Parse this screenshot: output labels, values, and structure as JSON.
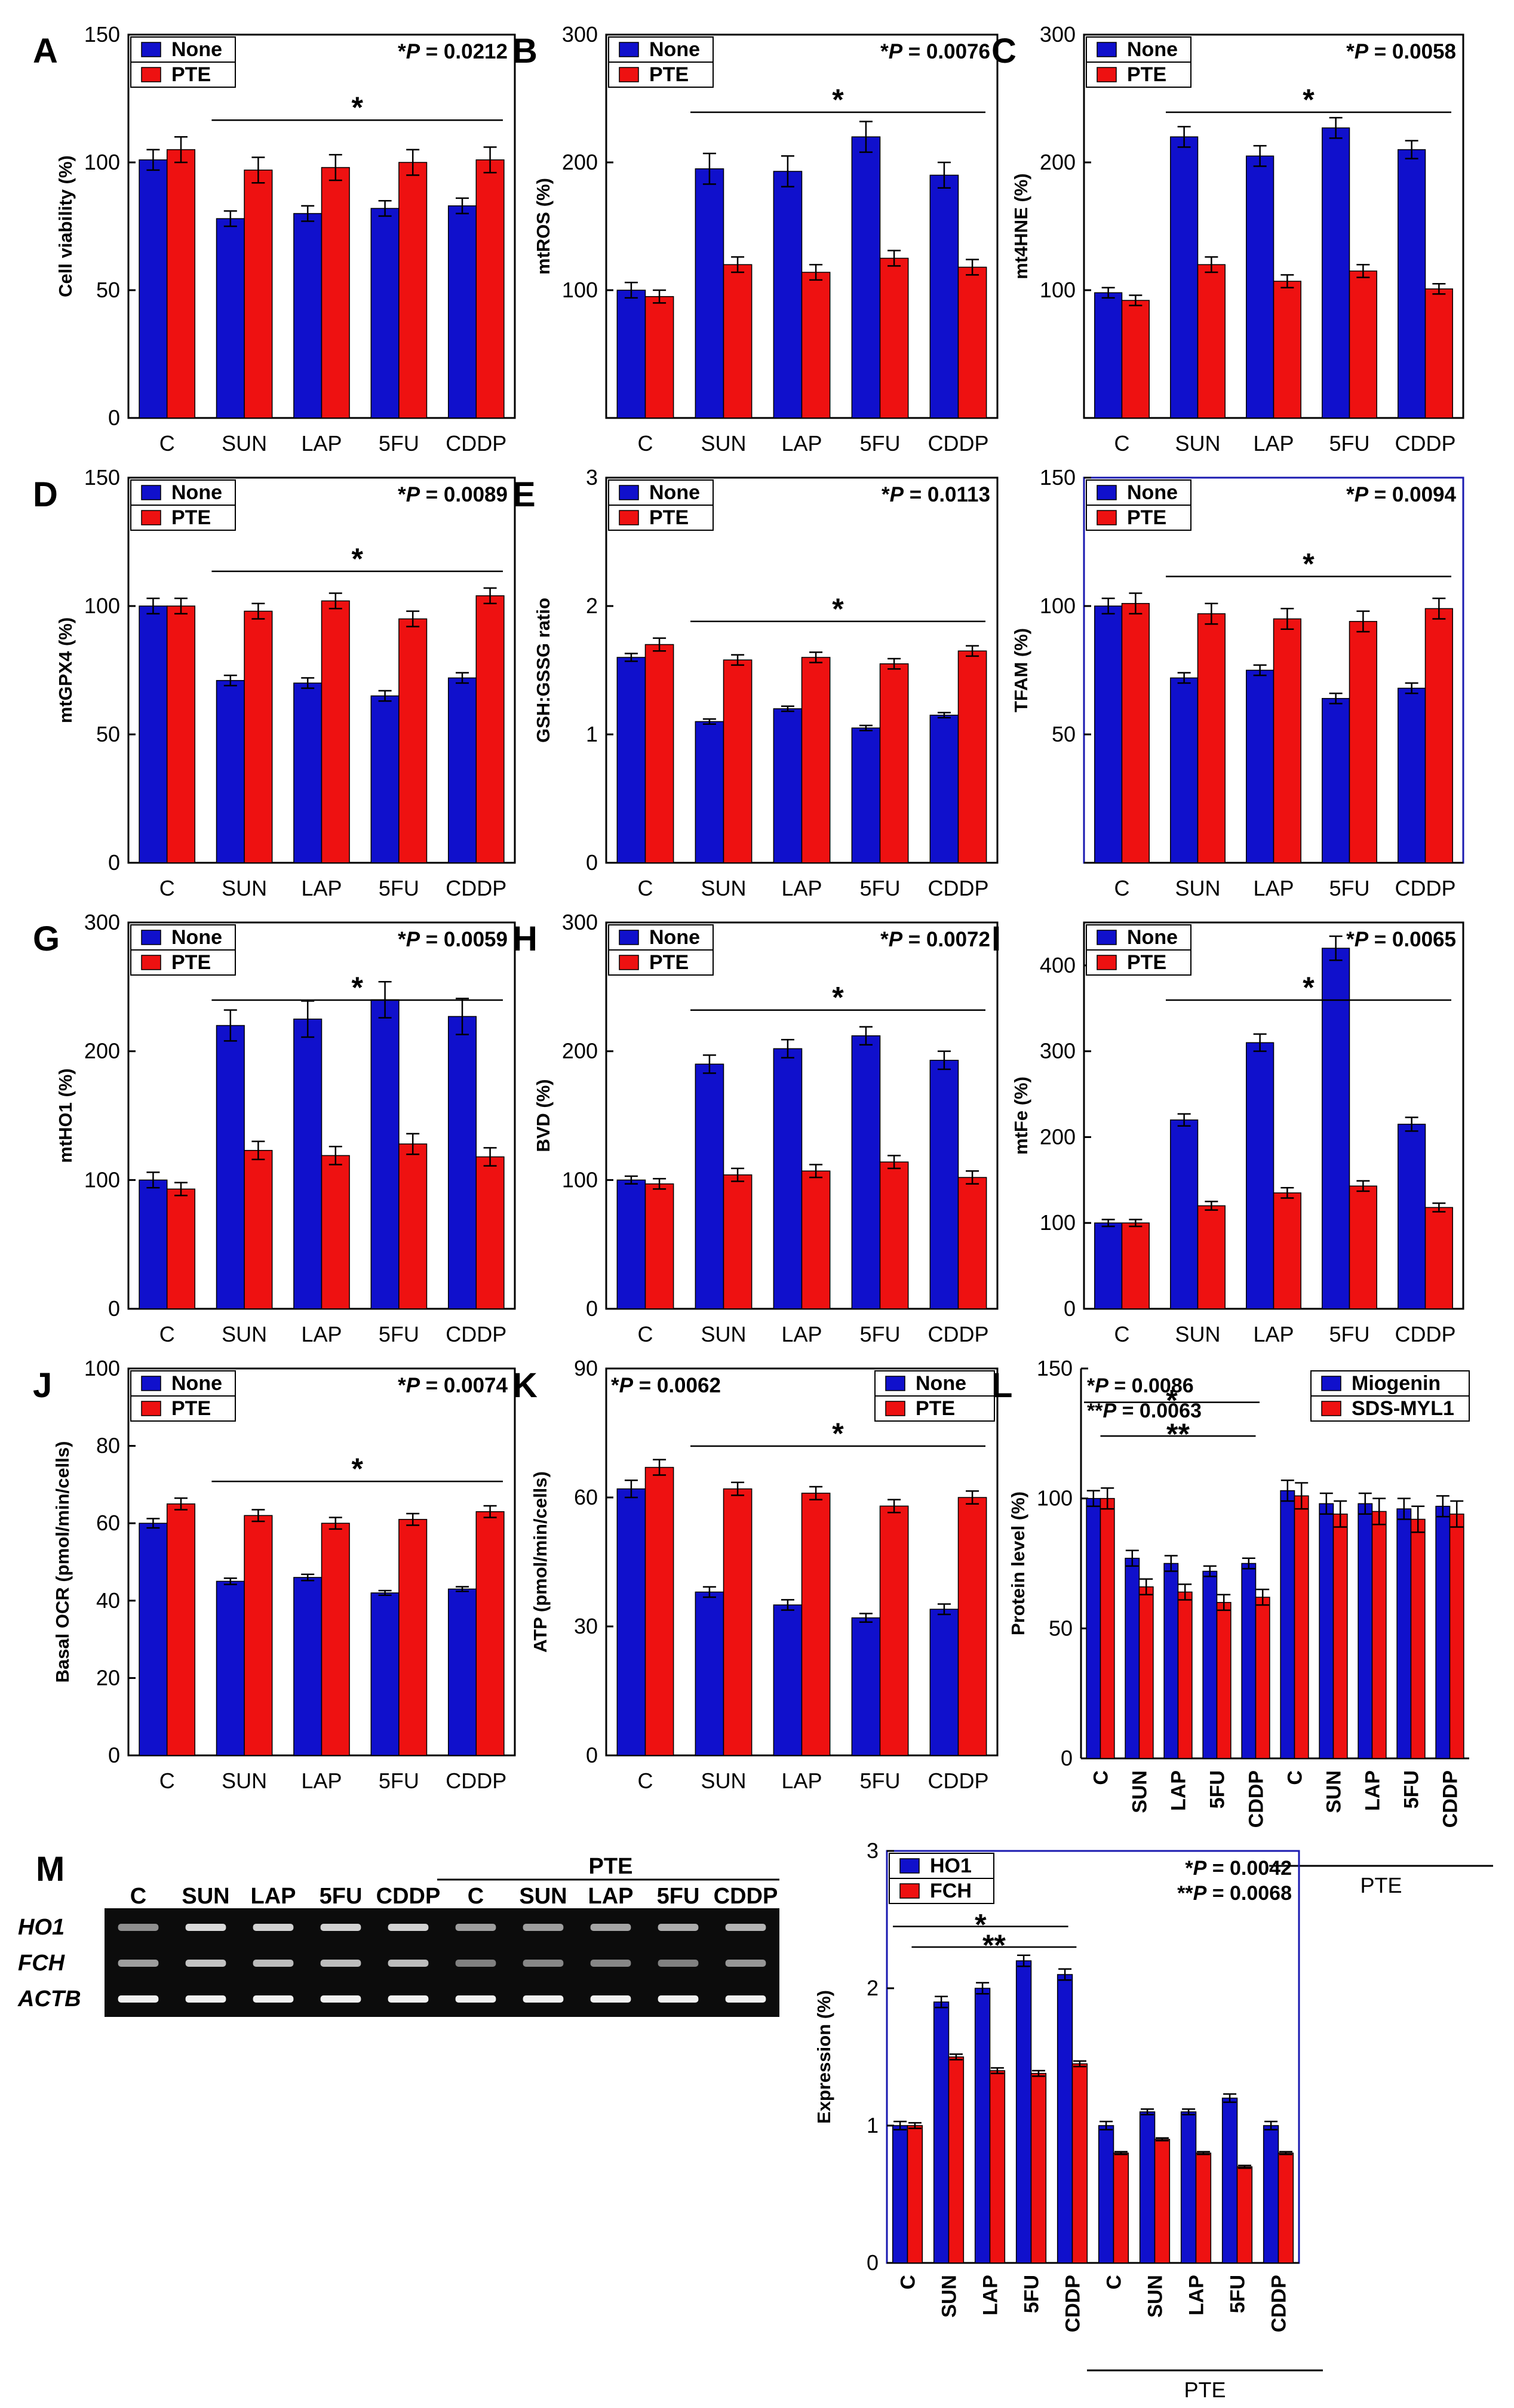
{
  "figure": {
    "colors": {
      "none": "#1010CC",
      "pte": "#EE1111",
      "axis": "#000000",
      "blue_frame": "#1A1AB0"
    },
    "categories": [
      "C",
      "SUN",
      "LAP",
      "5FU",
      "CDDP"
    ],
    "panel_m": {
      "label": "M",
      "gel_header_left": [
        "C",
        "SUN",
        "LAP",
        "5FU",
        "CDDP"
      ],
      "gel_header_pte": "PTE",
      "gel_header_right": [
        "C",
        "SUN",
        "LAP",
        "5FU",
        "CDDP"
      ],
      "gel_rows": [
        "HO1",
        "FCH",
        "ACTB"
      ]
    }
  },
  "chart_data": [
    {
      "id": "A",
      "type": "bar",
      "ylabel": "Cell viability (%)",
      "categories": [
        "C",
        "SUN",
        "LAP",
        "5FU",
        "CDDP"
      ],
      "series": [
        {
          "name": "None",
          "values": [
            101,
            78,
            80,
            82,
            83
          ],
          "errors": [
            4,
            3,
            3,
            3,
            3
          ]
        },
        {
          "name": "PTE",
          "values": [
            105,
            97,
            98,
            100,
            101
          ],
          "errors": [
            5,
            5,
            5,
            5,
            5
          ]
        }
      ],
      "ylim": [
        0,
        150
      ],
      "yticks": [
        0,
        50,
        100,
        150
      ],
      "pvalue_star": "*",
      "pvalue_label": "P",
      "pvalue_value": " = 0.0212",
      "sig_line_star": "*",
      "legend": "top-left",
      "frame": "black"
    },
    {
      "id": "B",
      "type": "bar",
      "ylabel": "mtROS (%)",
      "categories": [
        "C",
        "SUN",
        "LAP",
        "5FU",
        "CDDP"
      ],
      "series": [
        {
          "name": "None",
          "values": [
            100,
            195,
            193,
            220,
            190
          ],
          "errors": [
            6,
            12,
            12,
            12,
            10
          ]
        },
        {
          "name": "PTE",
          "values": [
            95,
            120,
            114,
            125,
            118
          ],
          "errors": [
            5,
            6,
            6,
            6,
            6
          ]
        }
      ],
      "ylim": [
        0,
        300
      ],
      "yticks": [
        100,
        200,
        300
      ],
      "pvalue_star": "*",
      "pvalue_label": "P",
      "pvalue_value": " = 0.0076",
      "sig_line_star": "*",
      "legend": "top-left",
      "frame": "black"
    },
    {
      "id": "C",
      "type": "bar",
      "ylabel": "mt4HNE (%)",
      "categories": [
        "C",
        "SUN",
        "LAP",
        "5FU",
        "CDDP"
      ],
      "series": [
        {
          "name": "None",
          "values": [
            98,
            220,
            205,
            227,
            210
          ],
          "errors": [
            4,
            8,
            8,
            8,
            7
          ]
        },
        {
          "name": "PTE",
          "values": [
            92,
            120,
            107,
            115,
            101
          ],
          "errors": [
            4,
            6,
            5,
            5,
            4
          ]
        }
      ],
      "ylim": [
        0,
        300
      ],
      "yticks": [
        100,
        200,
        300
      ],
      "pvalue_star": "*",
      "pvalue_label": "P",
      "pvalue_value": " = 0.0058",
      "sig_line_star": "*",
      "legend": "top-left",
      "frame": "black"
    },
    {
      "id": "D",
      "type": "bar",
      "ylabel": "mtGPX4 (%)",
      "categories": [
        "C",
        "SUN",
        "LAP",
        "5FU",
        "CDDP"
      ],
      "series": [
        {
          "name": "None",
          "values": [
            100,
            71,
            70,
            65,
            72
          ],
          "errors": [
            3,
            2,
            2,
            2,
            2
          ]
        },
        {
          "name": "PTE",
          "values": [
            100,
            98,
            102,
            95,
            104
          ],
          "errors": [
            3,
            3,
            3,
            3,
            3
          ]
        }
      ],
      "ylim": [
        0,
        150
      ],
      "yticks": [
        0,
        50,
        100,
        150
      ],
      "pvalue_star": "*",
      "pvalue_label": "P",
      "pvalue_value": " = 0.0089",
      "sig_line_star": "*",
      "legend": "top-left",
      "frame": "black"
    },
    {
      "id": "E",
      "type": "bar",
      "ylabel": "GSH:GSSG ratio",
      "categories": [
        "C",
        "SUN",
        "LAP",
        "5FU",
        "CDDP"
      ],
      "series": [
        {
          "name": "None",
          "values": [
            1.6,
            1.1,
            1.2,
            1.05,
            1.15
          ],
          "errors": [
            0.03,
            0.02,
            0.02,
            0.02,
            0.02
          ]
        },
        {
          "name": "PTE",
          "values": [
            1.7,
            1.58,
            1.6,
            1.55,
            1.65
          ],
          "errors": [
            0.05,
            0.04,
            0.04,
            0.04,
            0.04
          ]
        }
      ],
      "ylim": [
        0,
        3
      ],
      "yticks": [
        0,
        1,
        2,
        3
      ],
      "pvalue_star": "*",
      "pvalue_label": "P",
      "pvalue_value": " = 0.0113",
      "sig_line_star": "*",
      "legend": "top-left",
      "frame": "black"
    },
    {
      "id": "F",
      "type": "bar",
      "ylabel": "TFAM (%)",
      "categories": [
        "C",
        "SUN",
        "LAP",
        "5FU",
        "CDDP"
      ],
      "series": [
        {
          "name": "None",
          "values": [
            100,
            72,
            75,
            64,
            68
          ],
          "errors": [
            3,
            2,
            2,
            2,
            2
          ]
        },
        {
          "name": "PTE",
          "values": [
            101,
            97,
            95,
            94,
            99
          ],
          "errors": [
            4,
            4,
            4,
            4,
            4
          ]
        }
      ],
      "ylim": [
        0,
        150
      ],
      "yticks": [
        50,
        100,
        150
      ],
      "pvalue_star": "*",
      "pvalue_label": "P",
      "pvalue_value": " = 0.0094",
      "sig_line_star": "*",
      "legend": "top-left",
      "frame": "blue"
    },
    {
      "id": "G",
      "type": "bar",
      "ylabel": "mtHO1 (%)",
      "categories": [
        "C",
        "SUN",
        "LAP",
        "5FU",
        "CDDP"
      ],
      "series": [
        {
          "name": "None",
          "values": [
            100,
            220,
            225,
            240,
            227
          ],
          "errors": [
            6,
            12,
            14,
            14,
            14
          ]
        },
        {
          "name": "PTE",
          "values": [
            93,
            123,
            119,
            128,
            118
          ],
          "errors": [
            5,
            7,
            7,
            8,
            7
          ]
        }
      ],
      "ylim": [
        0,
        300
      ],
      "yticks": [
        0,
        100,
        200,
        300
      ],
      "pvalue_star": "*",
      "pvalue_label": "P",
      "pvalue_value": " = 0.0059",
      "sig_line_star": "*",
      "legend": "top-left",
      "frame": "black"
    },
    {
      "id": "H",
      "type": "bar",
      "ylabel": "BVD (%)",
      "categories": [
        "C",
        "SUN",
        "LAP",
        "5FU",
        "CDDP"
      ],
      "series": [
        {
          "name": "None",
          "values": [
            100,
            190,
            202,
            212,
            193
          ],
          "errors": [
            3,
            7,
            7,
            7,
            7
          ]
        },
        {
          "name": "PTE",
          "values": [
            97,
            104,
            107,
            114,
            102
          ],
          "errors": [
            4,
            5,
            5,
            5,
            5
          ]
        }
      ],
      "ylim": [
        0,
        300
      ],
      "yticks": [
        0,
        100,
        200,
        300
      ],
      "pvalue_star": "*",
      "pvalue_label": "P",
      "pvalue_value": " = 0.0072",
      "sig_line_star": "*",
      "legend": "top-left",
      "frame": "black"
    },
    {
      "id": "I",
      "type": "bar",
      "ylabel": "mtFe (%)",
      "categories": [
        "C",
        "SUN",
        "LAP",
        "5FU",
        "CDDP"
      ],
      "series": [
        {
          "name": "None",
          "values": [
            100,
            220,
            310,
            420,
            215
          ],
          "errors": [
            4,
            7,
            10,
            14,
            8
          ]
        },
        {
          "name": "PTE",
          "values": [
            100,
            120,
            135,
            143,
            118
          ],
          "errors": [
            4,
            5,
            6,
            6,
            5
          ]
        }
      ],
      "ylim": [
        0,
        450
      ],
      "yticks": [
        0,
        100,
        200,
        300,
        400
      ],
      "pvalue_star": "*",
      "pvalue_label": "P",
      "pvalue_value": " = 0.0065",
      "sig_line_star": "*",
      "legend": "top-left",
      "frame": "black"
    },
    {
      "id": "J",
      "type": "bar",
      "ylabel": "Basal OCR (pmol/min/cells)",
      "categories": [
        "C",
        "SUN",
        "LAP",
        "5FU",
        "CDDP"
      ],
      "series": [
        {
          "name": "None",
          "values": [
            60,
            45,
            46,
            42,
            43
          ],
          "errors": [
            1.2,
            0.8,
            0.8,
            0.6,
            0.6
          ]
        },
        {
          "name": "PTE",
          "values": [
            65,
            62,
            60,
            61,
            63
          ],
          "errors": [
            1.5,
            1.5,
            1.5,
            1.5,
            1.5
          ]
        }
      ],
      "ylim": [
        0,
        100
      ],
      "yticks": [
        0,
        20,
        40,
        60,
        80,
        100
      ],
      "pvalue_star": "*",
      "pvalue_label": "P",
      "pvalue_value": " = 0.0074",
      "sig_line_star": "*",
      "legend": "top-left",
      "frame": "black"
    },
    {
      "id": "K",
      "type": "bar",
      "ylabel": "ATP (pmol/min/cells)",
      "categories": [
        "C",
        "SUN",
        "LAP",
        "5FU",
        "CDDP"
      ],
      "series": [
        {
          "name": "None",
          "values": [
            62,
            38,
            35,
            32,
            34
          ],
          "errors": [
            2,
            1.2,
            1.2,
            1,
            1.2
          ]
        },
        {
          "name": "PTE",
          "values": [
            67,
            62,
            61,
            58,
            60
          ],
          "errors": [
            1.8,
            1.5,
            1.5,
            1.5,
            1.5
          ]
        }
      ],
      "ylim": [
        0,
        90
      ],
      "yticks": [
        0,
        30,
        60,
        90
      ],
      "pvalue_star": "*",
      "pvalue_label": "P",
      "pvalue_value": " = 0.0062",
      "sig_line_star": "*",
      "legend": "top-right",
      "frame": "black"
    },
    {
      "id": "L",
      "type": "bar",
      "ylabel": "Protein level (%)",
      "categories": [
        "C",
        "SUN",
        "LAP",
        "5FU",
        "CDDP",
        "C",
        "SUN",
        "LAP",
        "5FU",
        "CDDP"
      ],
      "group_label": "PTE",
      "series": [
        {
          "name": "Miogenin",
          "values": [
            100,
            77,
            75,
            72,
            75,
            103,
            98,
            98,
            96,
            97
          ],
          "errors": [
            3,
            3,
            3,
            2,
            2,
            4,
            4,
            4,
            4,
            4
          ]
        },
        {
          "name": "SDS-MYL1",
          "values": [
            100,
            66,
            64,
            60,
            62,
            101,
            94,
            95,
            92,
            94
          ],
          "errors": [
            4,
            3,
            3,
            3,
            3,
            5,
            5,
            5,
            5,
            5
          ]
        }
      ],
      "ylim": [
        0,
        150
      ],
      "yticks": [
        0,
        50,
        100,
        150
      ],
      "pvalue_lines": [
        {
          "star": "*",
          "label": "P",
          "value": " = 0.0086"
        },
        {
          "star": "**",
          "label": "P",
          "value": " = 0.0063"
        }
      ],
      "sig_stars": [
        "*",
        "**"
      ],
      "legend": "top-right",
      "frame": "none"
    },
    {
      "id": "M",
      "type": "bar",
      "ylabel": "Expression (%)",
      "categories": [
        "C",
        "SUN",
        "LAP",
        "5FU",
        "CDDP",
        "C",
        "SUN",
        "LAP",
        "5FU",
        "CDDP"
      ],
      "group_label": "PTE",
      "series": [
        {
          "name": "HO1",
          "values": [
            1.0,
            1.9,
            2.0,
            2.2,
            2.1,
            1.0,
            1.1,
            1.1,
            1.2,
            1.0
          ],
          "errors": [
            0.03,
            0.04,
            0.04,
            0.04,
            0.04,
            0.03,
            0.02,
            0.02,
            0.03,
            0.03
          ]
        },
        {
          "name": "FCH",
          "values": [
            1.0,
            1.5,
            1.4,
            1.38,
            1.45,
            0.8,
            0.9,
            0.8,
            0.7,
            0.8
          ],
          "errors": [
            0.02,
            0.02,
            0.02,
            0.02,
            0.02,
            0.01,
            0.01,
            0.01,
            0.01,
            0.01
          ]
        }
      ],
      "ylim": [
        0,
        3
      ],
      "yticks": [
        0,
        1,
        2,
        3
      ],
      "pvalue_lines": [
        {
          "star": "*",
          "label": "P",
          "value": " = 0.0042"
        },
        {
          "star": "**",
          "label": "P",
          "value": " = 0.0068"
        }
      ],
      "sig_stars": [
        "*",
        "**"
      ],
      "legend": "top-left",
      "frame": "blue"
    }
  ]
}
